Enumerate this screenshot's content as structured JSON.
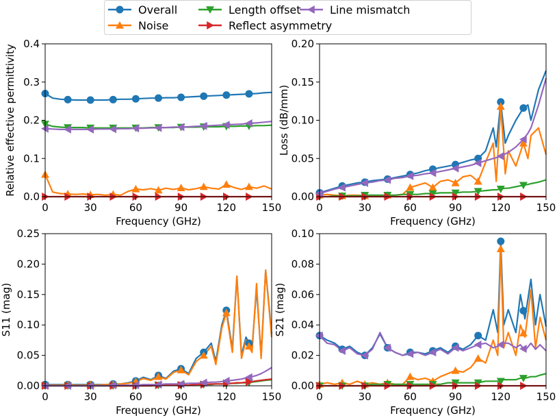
{
  "legend": {
    "placement": "top-center",
    "entries": [
      {
        "label": "Overall",
        "color": "#1f77b4",
        "marker": "circle"
      },
      {
        "label": "Noise",
        "color": "#ff7f0e",
        "marker": "triangle-up"
      },
      {
        "label": "Length offset",
        "color": "#2ca02c",
        "marker": "triangle-down"
      },
      {
        "label": "Reflect asymmetry",
        "color": "#d62728",
        "marker": "triangle-right"
      },
      {
        "label": "Line mismatch",
        "color": "#9467bd",
        "marker": "triangle-left"
      }
    ]
  },
  "chart_data": [
    {
      "type": "line",
      "title": "",
      "xlabel": "Frequency (GHz)",
      "ylabel": "Relative effective permittivity",
      "xlim": [
        0,
        150
      ],
      "ylim": [
        0,
        0.4
      ],
      "xticks": [
        0,
        30,
        60,
        90,
        120,
        150
      ],
      "yticks": [
        0.0,
        0.1,
        0.2,
        0.3,
        0.4
      ],
      "ytick_labels": [
        "0.0",
        "0.1",
        "0.2",
        "0.3",
        "0.4"
      ],
      "x": [
        0,
        5,
        10,
        15,
        20,
        25,
        30,
        35,
        40,
        45,
        50,
        55,
        60,
        65,
        70,
        75,
        80,
        85,
        90,
        95,
        100,
        105,
        110,
        115,
        120,
        125,
        130,
        135,
        140,
        145,
        150
      ],
      "series": [
        {
          "name": "Overall",
          "values": [
            0.27,
            0.258,
            0.255,
            0.254,
            0.253,
            0.253,
            0.253,
            0.253,
            0.253,
            0.254,
            0.255,
            0.255,
            0.256,
            0.257,
            0.258,
            0.258,
            0.259,
            0.259,
            0.26,
            0.261,
            0.262,
            0.263,
            0.264,
            0.265,
            0.266,
            0.267,
            0.268,
            0.269,
            0.27,
            0.272,
            0.273
          ]
        },
        {
          "name": "Noise",
          "values": [
            0.058,
            0.012,
            0.008,
            0.007,
            0.006,
            0.007,
            0.005,
            0.006,
            0.004,
            0.006,
            0.004,
            0.014,
            0.02,
            0.018,
            0.021,
            0.017,
            0.022,
            0.019,
            0.023,
            0.018,
            0.021,
            0.026,
            0.022,
            0.02,
            0.032,
            0.024,
            0.019,
            0.026,
            0.022,
            0.028,
            0.02
          ]
        },
        {
          "name": "Length offset",
          "values": [
            0.19,
            0.184,
            0.182,
            0.181,
            0.181,
            0.181,
            0.18,
            0.18,
            0.18,
            0.18,
            0.18,
            0.18,
            0.18,
            0.18,
            0.181,
            0.181,
            0.181,
            0.181,
            0.182,
            0.182,
            0.182,
            0.183,
            0.183,
            0.183,
            0.184,
            0.184,
            0.185,
            0.185,
            0.186,
            0.186,
            0.187
          ]
        },
        {
          "name": "Reflect asymmetry",
          "values": [
            0.0,
            0.0,
            0.0,
            0.0,
            0.0,
            0.0,
            0.0,
            0.0,
            0.0,
            0.0,
            0.0,
            0.0,
            0.0,
            0.0,
            0.0,
            0.0,
            0.0,
            0.0,
            0.0,
            0.0,
            0.0,
            0.0,
            0.0,
            0.0,
            0.0,
            0.0,
            0.0,
            0.0,
            0.0,
            0.0,
            0.0
          ]
        },
        {
          "name": "Line mismatch",
          "values": [
            0.178,
            0.177,
            0.176,
            0.176,
            0.176,
            0.176,
            0.176,
            0.177,
            0.177,
            0.177,
            0.178,
            0.178,
            0.179,
            0.179,
            0.18,
            0.18,
            0.181,
            0.182,
            0.182,
            0.183,
            0.184,
            0.185,
            0.186,
            0.187,
            0.188,
            0.189,
            0.19,
            0.192,
            0.193,
            0.195,
            0.197
          ]
        }
      ]
    },
    {
      "type": "line",
      "title": "",
      "xlabel": "Frequency (GHz)",
      "ylabel": "Loss (dB/mm)",
      "xlim": [
        0,
        150
      ],
      "ylim": [
        0,
        0.2
      ],
      "xticks": [
        0,
        30,
        60,
        90,
        120,
        150
      ],
      "yticks": [
        0.0,
        0.05,
        0.1,
        0.15,
        0.2
      ],
      "ytick_labels": [
        "0.00",
        "0.05",
        "0.10",
        "0.15",
        "0.20"
      ],
      "x": [
        0,
        5,
        10,
        15,
        20,
        25,
        30,
        35,
        40,
        45,
        50,
        55,
        60,
        65,
        70,
        75,
        80,
        85,
        90,
        95,
        100,
        105,
        110,
        115,
        117,
        120,
        123,
        125,
        130,
        135,
        138,
        140,
        145,
        150
      ],
      "series": [
        {
          "name": "Overall",
          "values": [
            0.005,
            0.008,
            0.011,
            0.014,
            0.016,
            0.018,
            0.019,
            0.021,
            0.022,
            0.023,
            0.025,
            0.027,
            0.029,
            0.031,
            0.034,
            0.036,
            0.038,
            0.04,
            0.042,
            0.045,
            0.048,
            0.05,
            0.06,
            0.09,
            0.065,
            0.124,
            0.07,
            0.08,
            0.1,
            0.116,
            0.12,
            0.1,
            0.14,
            0.165
          ]
        },
        {
          "name": "Noise",
          "values": [
            0.002,
            0.003,
            0.002,
            0.001,
            0.002,
            0.002,
            0.001,
            0.002,
            0.001,
            0.002,
            0.002,
            0.003,
            0.012,
            0.015,
            0.018,
            0.012,
            0.02,
            0.022,
            0.018,
            0.026,
            0.028,
            0.02,
            0.045,
            0.07,
            0.02,
            0.118,
            0.03,
            0.06,
            0.04,
            0.07,
            0.05,
            0.08,
            0.09,
            0.055
          ]
        },
        {
          "name": "Length offset",
          "values": [
            0.0,
            0.0,
            0.001,
            0.001,
            0.001,
            0.001,
            0.002,
            0.002,
            0.002,
            0.002,
            0.002,
            0.003,
            0.003,
            0.003,
            0.004,
            0.004,
            0.005,
            0.005,
            0.005,
            0.006,
            0.006,
            0.007,
            0.008,
            0.009,
            0.009,
            0.01,
            0.011,
            0.011,
            0.013,
            0.015,
            0.016,
            0.017,
            0.019,
            0.022
          ]
        },
        {
          "name": "Reflect asymmetry",
          "values": [
            0.0,
            0.0,
            0.0,
            0.0,
            0.0,
            0.0,
            0.0,
            0.0,
            0.0,
            0.0,
            0.0,
            0.0,
            0.0,
            0.0,
            0.0,
            0.0,
            0.0,
            0.0,
            0.0,
            0.0,
            0.0,
            0.0,
            0.0,
            0.0,
            0.0,
            0.0,
            0.0,
            0.0,
            0.0,
            0.0,
            0.0,
            0.0,
            0.0,
            0.0
          ]
        },
        {
          "name": "Line mismatch",
          "values": [
            0.004,
            0.007,
            0.01,
            0.012,
            0.014,
            0.016,
            0.018,
            0.019,
            0.021,
            0.022,
            0.024,
            0.025,
            0.027,
            0.028,
            0.03,
            0.031,
            0.033,
            0.035,
            0.037,
            0.039,
            0.041,
            0.044,
            0.047,
            0.05,
            0.051,
            0.053,
            0.056,
            0.058,
            0.065,
            0.075,
            0.083,
            0.09,
            0.12,
            0.155
          ]
        }
      ]
    },
    {
      "type": "line",
      "title": "",
      "xlabel": "Frequency (GHz)",
      "ylabel": "S11 (mag)",
      "xlim": [
        0,
        150
      ],
      "ylim": [
        0,
        0.25
      ],
      "xticks": [
        0,
        30,
        60,
        90,
        120,
        150
      ],
      "yticks": [
        0.0,
        0.05,
        0.1,
        0.15,
        0.2,
        0.25
      ],
      "ytick_labels": [
        "0.00",
        "0.05",
        "0.10",
        "0.15",
        "0.20",
        "0.25"
      ],
      "x": [
        0,
        5,
        10,
        15,
        20,
        25,
        30,
        35,
        40,
        45,
        50,
        55,
        60,
        65,
        70,
        75,
        80,
        85,
        90,
        95,
        100,
        105,
        110,
        113,
        117,
        120,
        124,
        127,
        130,
        133,
        137,
        140,
        143,
        146,
        150
      ],
      "series": [
        {
          "name": "Overall",
          "values": [
            0.002,
            0.002,
            0.002,
            0.002,
            0.002,
            0.002,
            0.002,
            0.002,
            0.002,
            0.003,
            0.003,
            0.005,
            0.008,
            0.014,
            0.01,
            0.017,
            0.012,
            0.024,
            0.028,
            0.02,
            0.045,
            0.055,
            0.07,
            0.04,
            0.1,
            0.124,
            0.06,
            0.18,
            0.05,
            0.08,
            0.06,
            0.16,
            0.05,
            0.19,
            0.085
          ]
        },
        {
          "name": "Noise",
          "values": [
            0.001,
            0.001,
            0.001,
            0.002,
            0.001,
            0.001,
            0.002,
            0.001,
            0.002,
            0.002,
            0.003,
            0.004,
            0.007,
            0.012,
            0.009,
            0.015,
            0.011,
            0.022,
            0.026,
            0.018,
            0.04,
            0.05,
            0.065,
            0.035,
            0.095,
            0.12,
            0.055,
            0.18,
            0.045,
            0.075,
            0.055,
            0.168,
            0.045,
            0.19,
            0.08
          ]
        },
        {
          "name": "Length offset",
          "values": [
            0.0,
            0.0,
            0.0,
            0.0,
            0.0,
            0.0,
            0.0,
            0.0,
            0.0,
            0.0,
            0.0,
            0.0,
            0.0,
            0.0,
            0.0,
            0.001,
            0.001,
            0.001,
            0.001,
            0.001,
            0.002,
            0.002,
            0.002,
            0.003,
            0.003,
            0.003,
            0.004,
            0.004,
            0.005,
            0.005,
            0.006,
            0.007,
            0.008,
            0.009,
            0.01
          ]
        },
        {
          "name": "Reflect asymmetry",
          "values": [
            0.0,
            0.0,
            0.0,
            0.0,
            0.0,
            0.0,
            0.0,
            0.0,
            0.0,
            0.0,
            0.0,
            0.0,
            0.0,
            0.0,
            0.0,
            0.001,
            0.001,
            0.001,
            0.001,
            0.001,
            0.002,
            0.002,
            0.003,
            0.003,
            0.003,
            0.004,
            0.004,
            0.005,
            0.005,
            0.006,
            0.007,
            0.008,
            0.009,
            0.01,
            0.011
          ]
        },
        {
          "name": "Line mismatch",
          "values": [
            0.0,
            0.0,
            0.0,
            0.0,
            0.0,
            0.0,
            0.0,
            0.0,
            0.0,
            0.001,
            0.001,
            0.001,
            0.001,
            0.002,
            0.002,
            0.002,
            0.003,
            0.003,
            0.003,
            0.004,
            0.004,
            0.005,
            0.006,
            0.006,
            0.007,
            0.008,
            0.009,
            0.01,
            0.011,
            0.013,
            0.015,
            0.017,
            0.02,
            0.024,
            0.03
          ]
        }
      ]
    },
    {
      "type": "line",
      "title": "",
      "xlabel": "Frequency (GHz)",
      "ylabel": "S21 (mag)",
      "xlim": [
        0,
        150
      ],
      "ylim": [
        0,
        0.1
      ],
      "xticks": [
        0,
        30,
        60,
        90,
        120,
        150
      ],
      "yticks": [
        0.0,
        0.02,
        0.04,
        0.06,
        0.08,
        0.1
      ],
      "ytick_labels": [
        "0.00",
        "0.02",
        "0.04",
        "0.06",
        "0.08",
        "0.10"
      ],
      "x": [
        0,
        5,
        10,
        15,
        20,
        25,
        30,
        35,
        40,
        45,
        50,
        55,
        60,
        65,
        70,
        75,
        80,
        85,
        90,
        95,
        100,
        105,
        110,
        115,
        118,
        120,
        122,
        125,
        130,
        133,
        136,
        140,
        143,
        146,
        150
      ],
      "series": [
        {
          "name": "Overall",
          "values": [
            0.033,
            0.03,
            0.028,
            0.024,
            0.026,
            0.022,
            0.02,
            0.025,
            0.034,
            0.025,
            0.022,
            0.02,
            0.022,
            0.022,
            0.021,
            0.023,
            0.025,
            0.022,
            0.026,
            0.024,
            0.027,
            0.033,
            0.03,
            0.05,
            0.035,
            0.095,
            0.04,
            0.05,
            0.035,
            0.06,
            0.044,
            0.07,
            0.04,
            0.06,
            0.039
          ]
        },
        {
          "name": "Noise",
          "values": [
            0.001,
            0.002,
            0.001,
            0.002,
            0.001,
            0.003,
            0.001,
            0.002,
            0.001,
            0.002,
            0.001,
            0.001,
            0.006,
            0.004,
            0.005,
            0.003,
            0.006,
            0.008,
            0.01,
            0.009,
            0.012,
            0.018,
            0.015,
            0.03,
            0.02,
            0.09,
            0.025,
            0.035,
            0.02,
            0.04,
            0.032,
            0.063,
            0.025,
            0.045,
            0.03
          ]
        },
        {
          "name": "Length offset",
          "values": [
            0.0,
            0.0,
            0.0,
            0.0,
            0.0,
            0.0,
            0.0,
            0.001,
            0.001,
            0.001,
            0.001,
            0.001,
            0.001,
            0.001,
            0.001,
            0.001,
            0.001,
            0.002,
            0.002,
            0.002,
            0.002,
            0.002,
            0.003,
            0.003,
            0.003,
            0.003,
            0.004,
            0.004,
            0.004,
            0.005,
            0.005,
            0.006,
            0.006,
            0.007,
            0.008
          ]
        },
        {
          "name": "Reflect asymmetry",
          "values": [
            0.0,
            0.0,
            0.0,
            0.0,
            0.0,
            0.0,
            0.0,
            0.0,
            0.0,
            0.0,
            0.0,
            0.0,
            0.0,
            0.0,
            0.0,
            0.0,
            0.0,
            0.0,
            0.0,
            0.0,
            0.0,
            0.0,
            0.0,
            0.0,
            0.0,
            0.0,
            0.0,
            0.0,
            0.0,
            0.0,
            0.0,
            0.0,
            0.0,
            0.0,
            0.0
          ]
        },
        {
          "name": "Line mismatch",
          "values": [
            0.033,
            0.028,
            0.027,
            0.023,
            0.025,
            0.021,
            0.02,
            0.024,
            0.035,
            0.025,
            0.022,
            0.02,
            0.021,
            0.022,
            0.02,
            0.022,
            0.024,
            0.021,
            0.025,
            0.023,
            0.025,
            0.027,
            0.028,
            0.025,
            0.026,
            0.027,
            0.028,
            0.028,
            0.025,
            0.027,
            0.023,
            0.028,
            0.024,
            0.027,
            0.023
          ]
        }
      ]
    }
  ]
}
